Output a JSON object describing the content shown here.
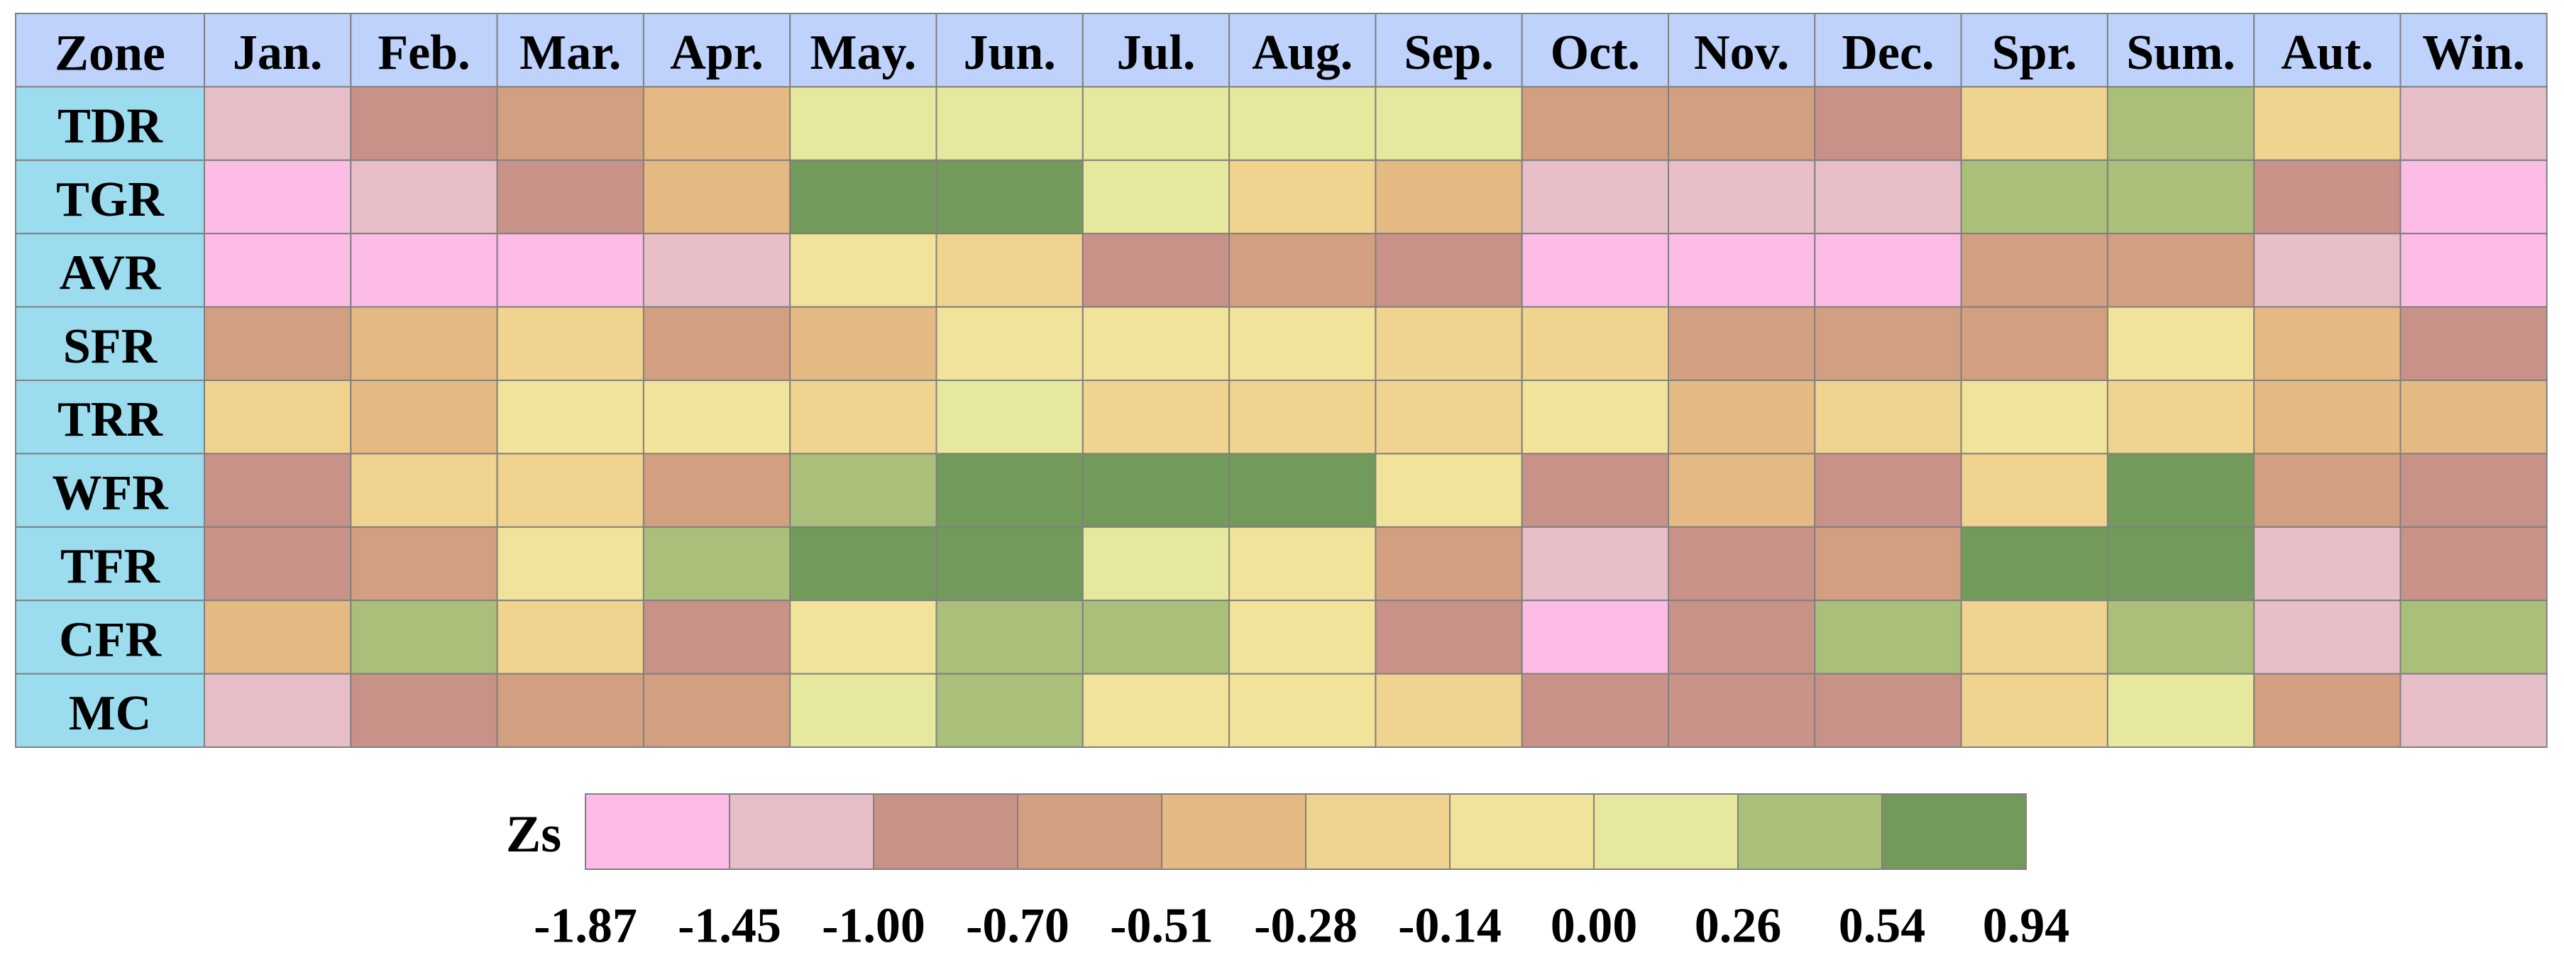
{
  "chart_data": {
    "type": "heatmap",
    "corner_label": "Zone",
    "columns": [
      "Jan.",
      "Feb.",
      "Mar.",
      "Apr.",
      "May.",
      "Jun.",
      "Jul.",
      "Aug.",
      "Sep.",
      "Oct.",
      "Nov.",
      "Dec.",
      "Spr.",
      "Sum.",
      "Aut.",
      "Win."
    ],
    "rows": [
      "TDR",
      "TGR",
      "AVR",
      "SFR",
      "TRR",
      "WFR",
      "TFR",
      "CFR",
      "MC"
    ],
    "legend_label": "Zs",
    "legend_ticks": [
      "-1.87",
      "-1.45",
      "-1.00",
      "-0.70",
      "-0.51",
      "-0.28",
      "-0.14",
      "0.00",
      "0.26",
      "0.54",
      "0.94"
    ],
    "legend_colors": [
      "#fdbce6",
      "#e8bec9",
      "#c99289",
      "#d29f81",
      "#e4b982",
      "#f0d38f",
      "#f2e39a",
      "#e6e99d",
      "#a9bf7a",
      "#729a5a"
    ],
    "header_color": "#bed2fb",
    "row_header_color": "#9cdcef",
    "value_bins": [
      [
        1,
        2,
        3,
        4,
        7,
        7,
        7,
        7,
        7,
        3,
        3,
        2,
        5,
        8,
        5,
        1
      ],
      [
        0,
        1,
        2,
        4,
        9,
        9,
        7,
        5,
        4,
        1,
        1,
        1,
        8,
        8,
        2,
        0
      ],
      [
        0,
        0,
        0,
        1,
        6,
        5,
        2,
        3,
        2,
        0,
        0,
        0,
        3,
        3,
        1,
        0
      ],
      [
        3,
        4,
        5,
        3,
        4,
        6,
        6,
        6,
        5,
        5,
        3,
        3,
        3,
        6,
        4,
        2
      ],
      [
        5,
        4,
        6,
        6,
        5,
        7,
        5,
        5,
        5,
        6,
        4,
        5,
        6,
        5,
        4,
        4
      ],
      [
        2,
        5,
        5,
        3,
        8,
        9,
        9,
        9,
        6,
        2,
        4,
        2,
        5,
        9,
        3,
        2
      ],
      [
        2,
        3,
        6,
        8,
        9,
        9,
        7,
        6,
        3,
        1,
        2,
        3,
        9,
        9,
        1,
        2
      ],
      [
        4,
        8,
        5,
        2,
        6,
        8,
        8,
        6,
        2,
        0,
        2,
        8,
        5,
        8,
        1,
        8
      ],
      [
        1,
        2,
        3,
        3,
        7,
        8,
        6,
        6,
        5,
        2,
        2,
        2,
        5,
        7,
        3,
        1
      ]
    ]
  }
}
